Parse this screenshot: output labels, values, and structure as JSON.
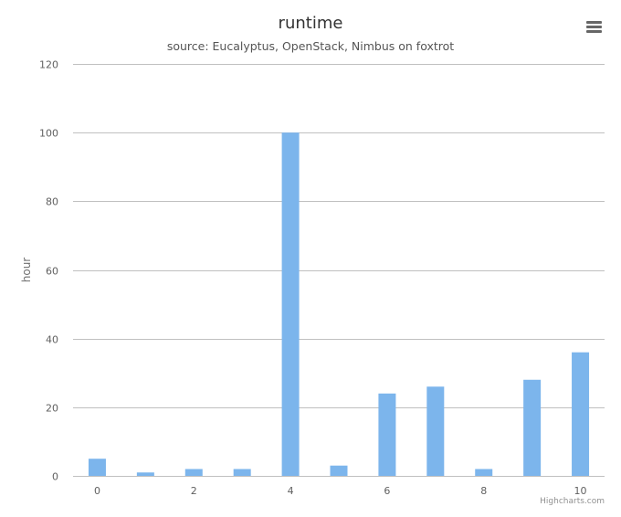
{
  "header": {
    "title": "runtime",
    "subtitle": "source: Eucalyptus, OpenStack, Nimbus on foxtrot",
    "menu_icon": "hamburger-menu-icon"
  },
  "credits": "Highcharts.com",
  "chart_data": {
    "type": "bar",
    "title": "runtime",
    "subtitle": "source: Eucalyptus, OpenStack, Nimbus on foxtrot",
    "xlabel": "",
    "ylabel": "hour",
    "x": [
      0,
      1,
      2,
      3,
      4,
      5,
      6,
      7,
      8,
      9,
      10
    ],
    "values": [
      5,
      1,
      2,
      2,
      100,
      3,
      24,
      26,
      2,
      28,
      36
    ],
    "xlim": [
      -0.5,
      10.5
    ],
    "ylim": [
      0,
      120
    ],
    "x_ticks": [
      0,
      2,
      4,
      6,
      8,
      10
    ],
    "y_ticks": [
      0,
      20,
      40,
      60,
      80,
      100,
      120
    ],
    "grid": true,
    "legend": "none",
    "bar_color": "#7cb5ec",
    "grid_color": "#c0c0c0"
  }
}
